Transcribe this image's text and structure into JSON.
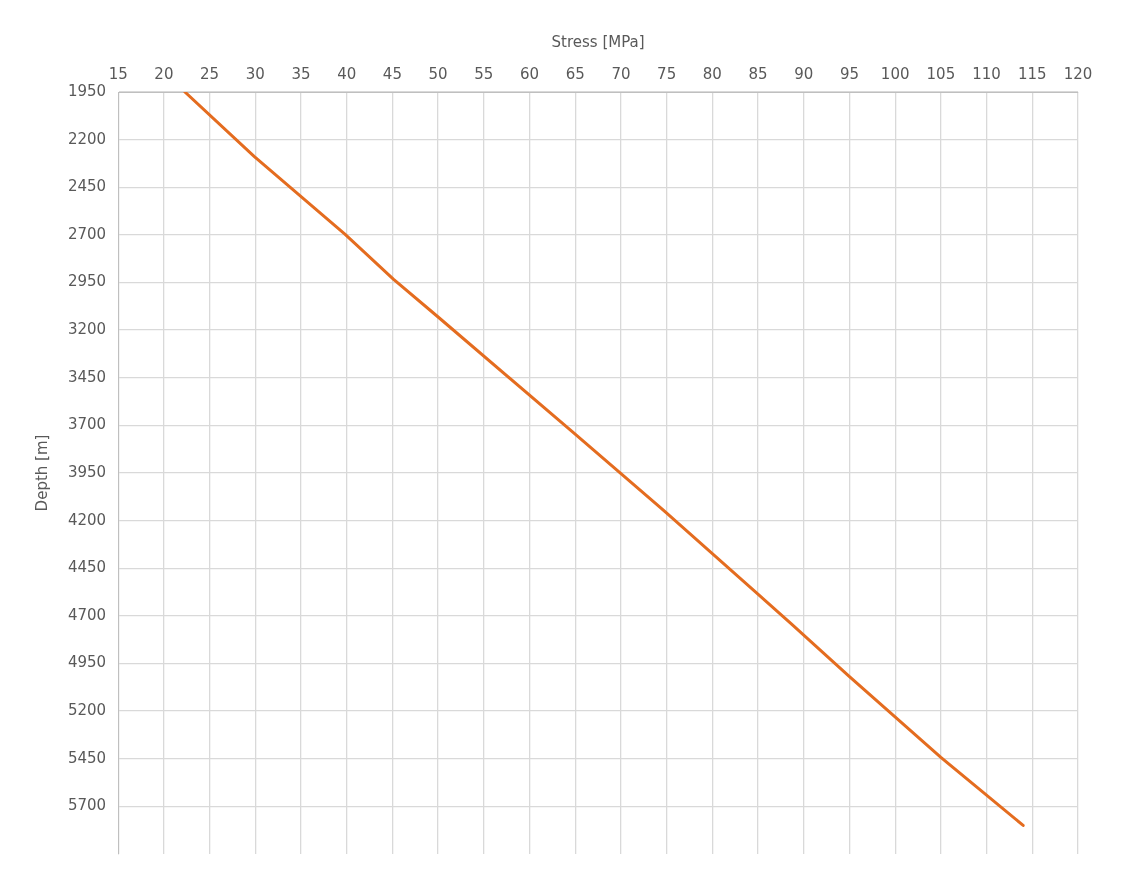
{
  "chart_data": {
    "type": "line",
    "xlabel": "Stress [MPa]",
    "ylabel": "Depth [m]",
    "x": [
      22.3,
      29.9,
      39.8,
      45.1,
      50.0,
      64.8,
      75.1,
      88.7,
      95,
      105,
      114
    ],
    "values": [
      1950,
      2289,
      2696,
      2932,
      3131,
      3738,
      4164,
      4744,
      5019,
      5443,
      5800
    ],
    "color": "#e46c1f",
    "xlim": [
      15,
      120
    ],
    "xticks": [
      15,
      20,
      25,
      30,
      35,
      40,
      45,
      50,
      55,
      60,
      65,
      70,
      75,
      80,
      85,
      90,
      95,
      100,
      105,
      110,
      115,
      120
    ],
    "ylim": [
      5950,
      1950
    ],
    "yticks": [
      1950,
      2200,
      2450,
      2700,
      2950,
      3200,
      3450,
      3700,
      3950,
      4200,
      4450,
      4700,
      4950,
      5200,
      5450,
      5700
    ],
    "grid": true,
    "marker": "none",
    "line_style": "solid",
    "legend": false
  }
}
